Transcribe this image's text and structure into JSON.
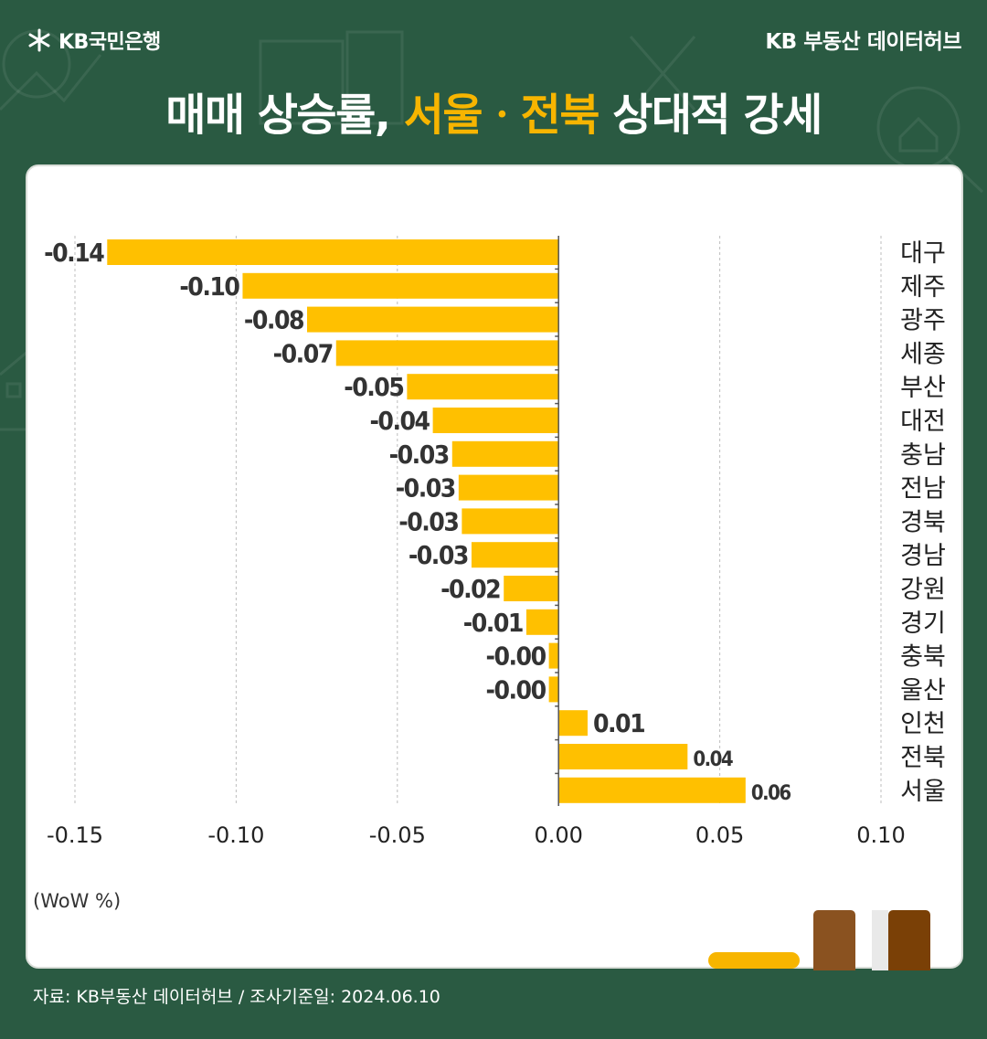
{
  "header": {
    "logo_text": "KB국민은행",
    "brand": "KB 부동산  데이터허브"
  },
  "title": {
    "part1": "매매 상승률, ",
    "highlight": "서울ㆍ전북",
    "part2": " 상대적 강세"
  },
  "colors": {
    "background": "#2a5a42",
    "bar": "#ffc000",
    "highlight": "#f7b500"
  },
  "chart_data": {
    "type": "bar",
    "orientation": "horizontal",
    "categories": [
      "대구",
      "제주",
      "광주",
      "세종",
      "부산",
      "대전",
      "충남",
      "전남",
      "경북",
      "경남",
      "강원",
      "경기",
      "충북",
      "울산",
      "인천",
      "전북",
      "서울"
    ],
    "values": [
      -0.14,
      -0.098,
      -0.078,
      -0.069,
      -0.047,
      -0.039,
      -0.033,
      -0.031,
      -0.03,
      -0.027,
      -0.017,
      -0.01,
      -0.003,
      -0.003,
      0.009,
      0.04,
      0.058
    ],
    "value_labels": [
      "-0.14",
      "-0.10",
      "-0.08",
      "-0.07",
      "-0.05",
      "-0.04",
      "-0.03",
      "-0.03",
      "-0.03",
      "-0.03",
      "-0.02",
      "-0.01",
      "-0.00",
      "-0.00",
      "0.01",
      "0.04",
      "0.06"
    ],
    "xlim": [
      -0.15,
      0.1
    ],
    "xticks": [
      -0.15,
      -0.1,
      -0.05,
      0.0,
      0.05,
      0.1
    ],
    "xtick_labels": [
      "-0.15",
      "-0.10",
      "-0.05",
      "0.00",
      "0.05",
      "0.10"
    ],
    "grid": true,
    "unit_label": "(WoW %)"
  },
  "footer": {
    "source": "자료: KB부동산 데이터허브 / 조사기준일: 2024.06.10"
  }
}
